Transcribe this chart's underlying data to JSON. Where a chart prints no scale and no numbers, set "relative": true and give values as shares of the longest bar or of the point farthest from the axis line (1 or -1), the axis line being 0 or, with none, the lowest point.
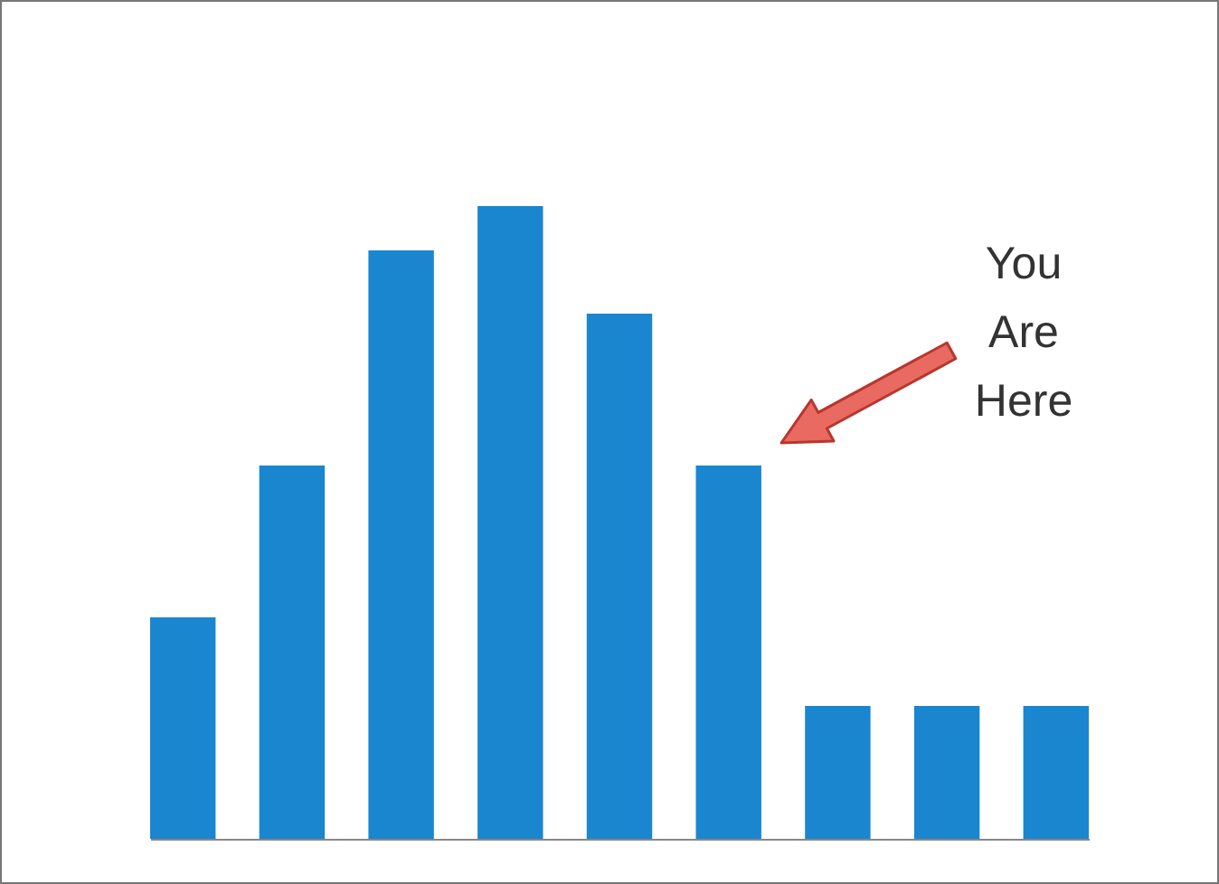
{
  "chart_data": {
    "type": "bar",
    "relative": true,
    "categories": [
      null,
      null,
      null,
      null,
      null,
      null,
      null,
      null,
      null
    ],
    "values": [
      0.35,
      0.59,
      0.93,
      1,
      0.83,
      0.59,
      0.21,
      0.21,
      0.21
    ],
    "color": "#1a86d0",
    "annotations": [
      "You Are Here"
    ]
  }
}
